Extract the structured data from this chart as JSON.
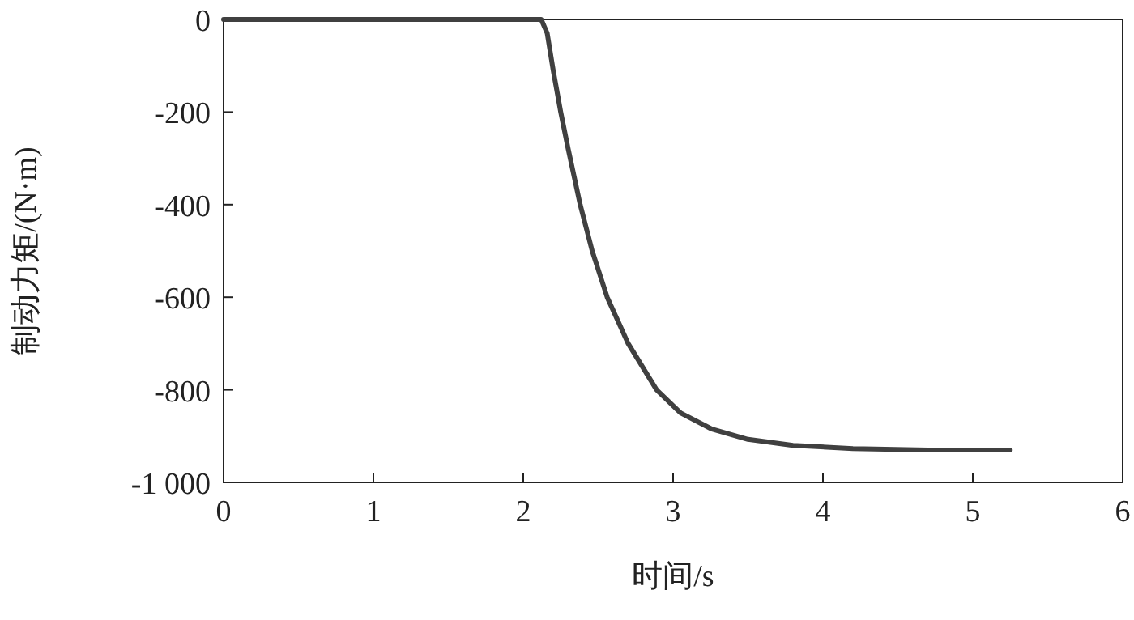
{
  "chart_data": {
    "type": "line",
    "xlabel": "时间/s",
    "ylabel": "制动力矩/(N·m)",
    "xlim": [
      0,
      6
    ],
    "xticks": [
      0,
      1,
      2,
      3,
      4,
      5,
      6
    ],
    "ylim": [
      -1000,
      0
    ],
    "yticks": [
      {
        "value": -1000,
        "label": "-1 000"
      },
      -800,
      -600,
      -400,
      -200,
      0
    ],
    "grid": false,
    "series": [
      {
        "color": "#404040",
        "x": [
          0,
          2.12,
          2.16,
          2.2,
          2.25,
          2.3,
          2.38,
          2.46,
          2.56,
          2.7,
          2.89,
          3.05,
          3.26,
          3.5,
          3.8,
          4.2,
          4.7,
          5.25
        ],
        "values": [
          0,
          0,
          -30,
          -110,
          -200,
          -280,
          -400,
          -500,
          -600,
          -700,
          -800,
          -850,
          -885,
          -907,
          -920,
          -927,
          -930,
          -930
        ]
      }
    ]
  }
}
